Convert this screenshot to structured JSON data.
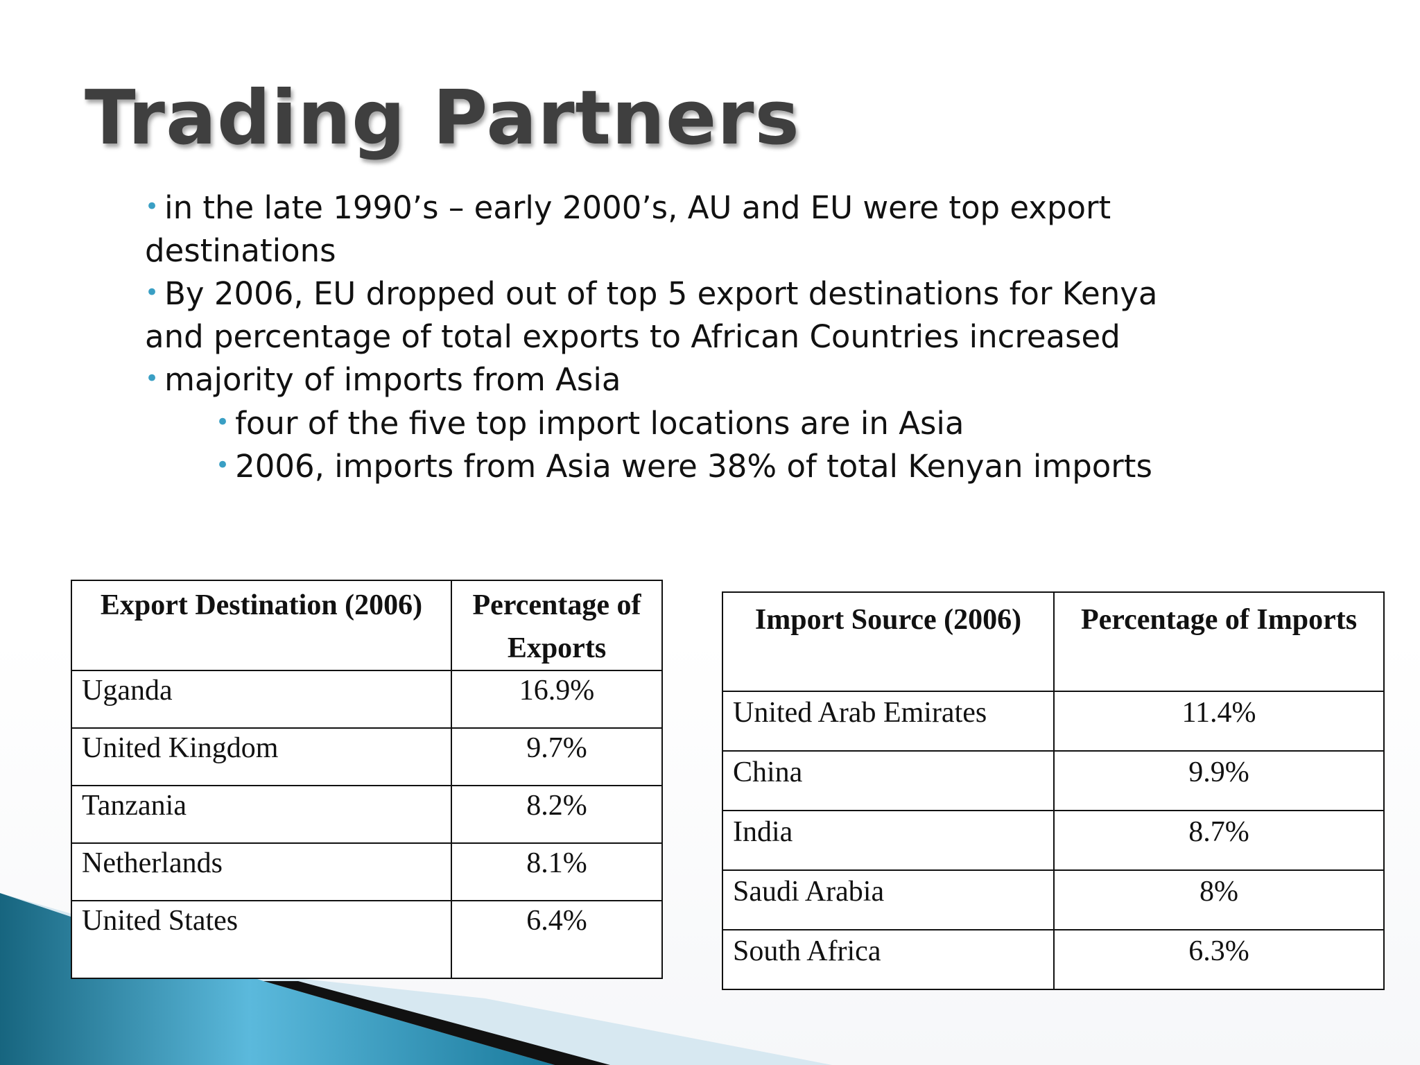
{
  "title": "Trading Partners",
  "bullets": [
    {
      "level": 1,
      "text": "in the late 1990’s – early 2000’s, AU and EU were top export destinations"
    },
    {
      "level": 1,
      "text": "By 2006, EU dropped out of top 5 export destinations for Kenya and percentage of total exports to African Countries increased"
    },
    {
      "level": 1,
      "text": "majority of imports from Asia"
    },
    {
      "level": 2,
      "text": "four of the five top import locations are in Asia"
    },
    {
      "level": 2,
      "text": "2006, imports from Asia were 38% of total Kenyan imports"
    }
  ],
  "export_table": {
    "header": [
      "Export Destination (2006)",
      "Percentage of Exports"
    ],
    "rows": [
      [
        "Uganda",
        "16.9%"
      ],
      [
        "United Kingdom",
        "9.7%"
      ],
      [
        "Tanzania",
        "8.2%"
      ],
      [
        "Netherlands",
        "8.1%"
      ],
      [
        "United States",
        "6.4%"
      ]
    ]
  },
  "import_table": {
    "header": [
      "Import Source (2006)",
      "Percentage of Imports"
    ],
    "rows": [
      [
        "United Arab Emirates",
        "11.4%"
      ],
      [
        "China",
        "9.9%"
      ],
      [
        "India",
        "8.7%"
      ],
      [
        "Saudi Arabia",
        "8%"
      ],
      [
        "South Africa",
        "6.3%"
      ]
    ]
  }
}
